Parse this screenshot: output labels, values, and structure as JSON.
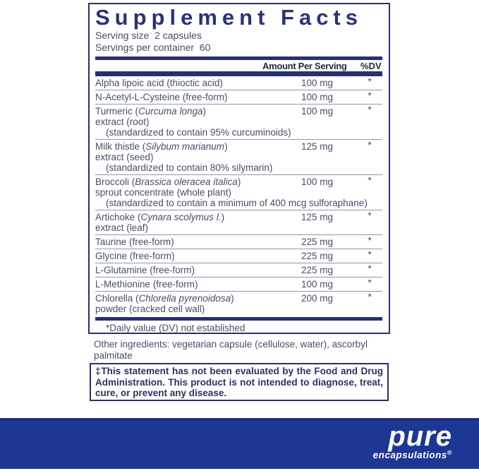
{
  "panel": {
    "title": "Supplement Facts",
    "serving_size_line": "Serving size  2 capsules",
    "servings_per_container_line": "Servings per container  60",
    "columns": {
      "amount": "Amount Per Serving",
      "dv": "%DV"
    },
    "rows": [
      {
        "lines": [
          {
            "segments": [
              {
                "text": "Alpha lipoic acid (thioctic acid)",
                "italic": false
              }
            ],
            "indent": false
          }
        ],
        "amount": "100 mg",
        "dv": "*"
      },
      {
        "lines": [
          {
            "segments": [
              {
                "text": "N-Acetyl-L-Cysteine (free-form)",
                "italic": false
              }
            ],
            "indent": false
          }
        ],
        "amount": "100 mg",
        "dv": "*"
      },
      {
        "lines": [
          {
            "segments": [
              {
                "text": "Turmeric (",
                "italic": false
              },
              {
                "text": "Curcuma longa",
                "italic": true
              },
              {
                "text": ")",
                "italic": false
              }
            ],
            "indent": false
          },
          {
            "segments": [
              {
                "text": "extract (root)",
                "italic": false
              }
            ],
            "indent": false
          },
          {
            "segments": [
              {
                "text": "(standardized to contain 95% curcuminoids)",
                "italic": false
              }
            ],
            "indent": true
          }
        ],
        "amount": "100 mg",
        "dv": "*"
      },
      {
        "lines": [
          {
            "segments": [
              {
                "text": "Milk thistle (",
                "italic": false
              },
              {
                "text": "Silybum marianum",
                "italic": true
              },
              {
                "text": ")",
                "italic": false
              }
            ],
            "indent": false
          },
          {
            "segments": [
              {
                "text": "extract (seed)",
                "italic": false
              }
            ],
            "indent": false
          },
          {
            "segments": [
              {
                "text": "(standardized to contain 80% silymarin)",
                "italic": false
              }
            ],
            "indent": true
          }
        ],
        "amount": "125 mg",
        "dv": "*"
      },
      {
        "lines": [
          {
            "segments": [
              {
                "text": "Broccoli (",
                "italic": false
              },
              {
                "text": "Brassica oleracea italica",
                "italic": true
              },
              {
                "text": ")",
                "italic": false
              }
            ],
            "indent": false
          },
          {
            "segments": [
              {
                "text": "sprout concentrate (whole plant)",
                "italic": false
              }
            ],
            "indent": false
          },
          {
            "segments": [
              {
                "text": "(standardized to contain a minimum of 400 mcg sulforaphane)",
                "italic": false
              }
            ],
            "indent": true
          }
        ],
        "amount": "100 mg",
        "dv": "*"
      },
      {
        "lines": [
          {
            "segments": [
              {
                "text": "Artichoke (",
                "italic": false
              },
              {
                "text": "Cynara scolymus l.",
                "italic": true
              },
              {
                "text": ")",
                "italic": false
              }
            ],
            "indent": false
          },
          {
            "segments": [
              {
                "text": "extract (leaf)",
                "italic": false
              }
            ],
            "indent": false
          }
        ],
        "amount": "125 mg",
        "dv": "*"
      },
      {
        "lines": [
          {
            "segments": [
              {
                "text": "Taurine (free-form)",
                "italic": false
              }
            ],
            "indent": false
          }
        ],
        "amount": "225 mg",
        "dv": "*"
      },
      {
        "lines": [
          {
            "segments": [
              {
                "text": "Glycine (free-form)",
                "italic": false
              }
            ],
            "indent": false
          }
        ],
        "amount": "225 mg",
        "dv": "*"
      },
      {
        "lines": [
          {
            "segments": [
              {
                "text": "L-Glutamine (free-form)",
                "italic": false
              }
            ],
            "indent": false
          }
        ],
        "amount": "225 mg",
        "dv": "*"
      },
      {
        "lines": [
          {
            "segments": [
              {
                "text": "L-Methionine (free-form)",
                "italic": false
              }
            ],
            "indent": false
          }
        ],
        "amount": "100 mg",
        "dv": "*"
      },
      {
        "lines": [
          {
            "segments": [
              {
                "text": "Chlorella (",
                "italic": false
              },
              {
                "text": "Chlorella pyrenoidosa",
                "italic": true
              },
              {
                "text": ")",
                "italic": false
              }
            ],
            "indent": false
          },
          {
            "segments": [
              {
                "text": "powder (cracked cell wall)",
                "italic": false
              }
            ],
            "indent": false
          }
        ],
        "amount": "200 mg",
        "dv": "*"
      }
    ],
    "footnote": "*Daily value (DV) not established"
  },
  "other_ingredients": "Other ingredients: vegetarian capsule (cellulose, water), ascorbyl palmitate",
  "disclaimer": "‡This statement has not been evaluated by the Food and Drug Administration. This product is not intended to diagnose, treat, cure, or prevent any disease.",
  "brand": {
    "name": "pure",
    "subname": "encapsulations",
    "registered": "®"
  },
  "colors": {
    "navy": "#28316f",
    "body_text": "#474e66",
    "footer_blue": "#1d3794"
  }
}
